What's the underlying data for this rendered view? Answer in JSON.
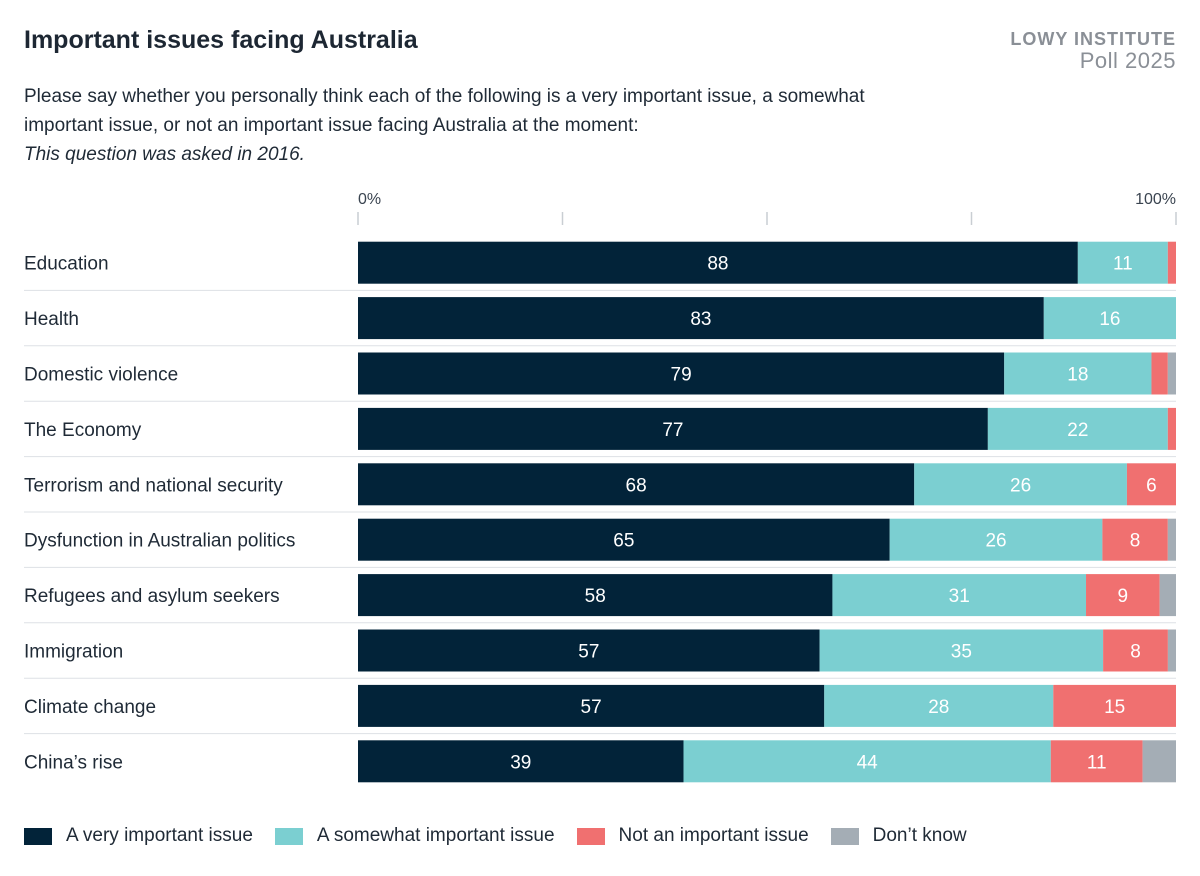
{
  "header": {
    "title": "Important issues facing Australia",
    "subtitle": "Please say whether you personally think each of the following is a very important issue, a somewhat important issue, or not an important issue facing Australia at the moment:",
    "note": "This question was asked in 2016.",
    "brand_line1": "LOWY INSTITUTE",
    "brand_line2": "Poll 2025"
  },
  "chart_data": {
    "type": "bar",
    "orientation": "horizontal",
    "stacked": true,
    "unit": "%",
    "xlim": [
      0,
      100
    ],
    "x_tick_labels": [
      "0%",
      "100%"
    ],
    "categories": [
      "Education",
      "Health",
      "Domestic violence",
      "The Economy",
      "Terrorism and national security",
      "Dysfunction in Australian politics",
      "Refugees and asylum seekers",
      "Immigration",
      "Climate change",
      "China’s rise"
    ],
    "series": [
      {
        "name": "A very important issue",
        "color": "#022339",
        "values": [
          88,
          83,
          79,
          77,
          68,
          65,
          58,
          57,
          57,
          39
        ]
      },
      {
        "name": "A somewhat important issue",
        "color": "#7bcfd1",
        "values": [
          11,
          16,
          18,
          22,
          26,
          26,
          31,
          35,
          28,
          44
        ]
      },
      {
        "name": "Not an important issue",
        "color": "#f07070",
        "values": [
          1,
          0,
          2,
          1,
          6,
          8,
          9,
          8,
          15,
          11
        ]
      },
      {
        "name": "Don’t know",
        "color": "#a4adb5",
        "values": [
          0,
          0,
          1,
          0,
          0,
          1,
          2,
          1,
          0,
          4
        ]
      }
    ],
    "data_labels_min": 5,
    "legend_position": "bottom",
    "grid": "top tick marks only"
  }
}
